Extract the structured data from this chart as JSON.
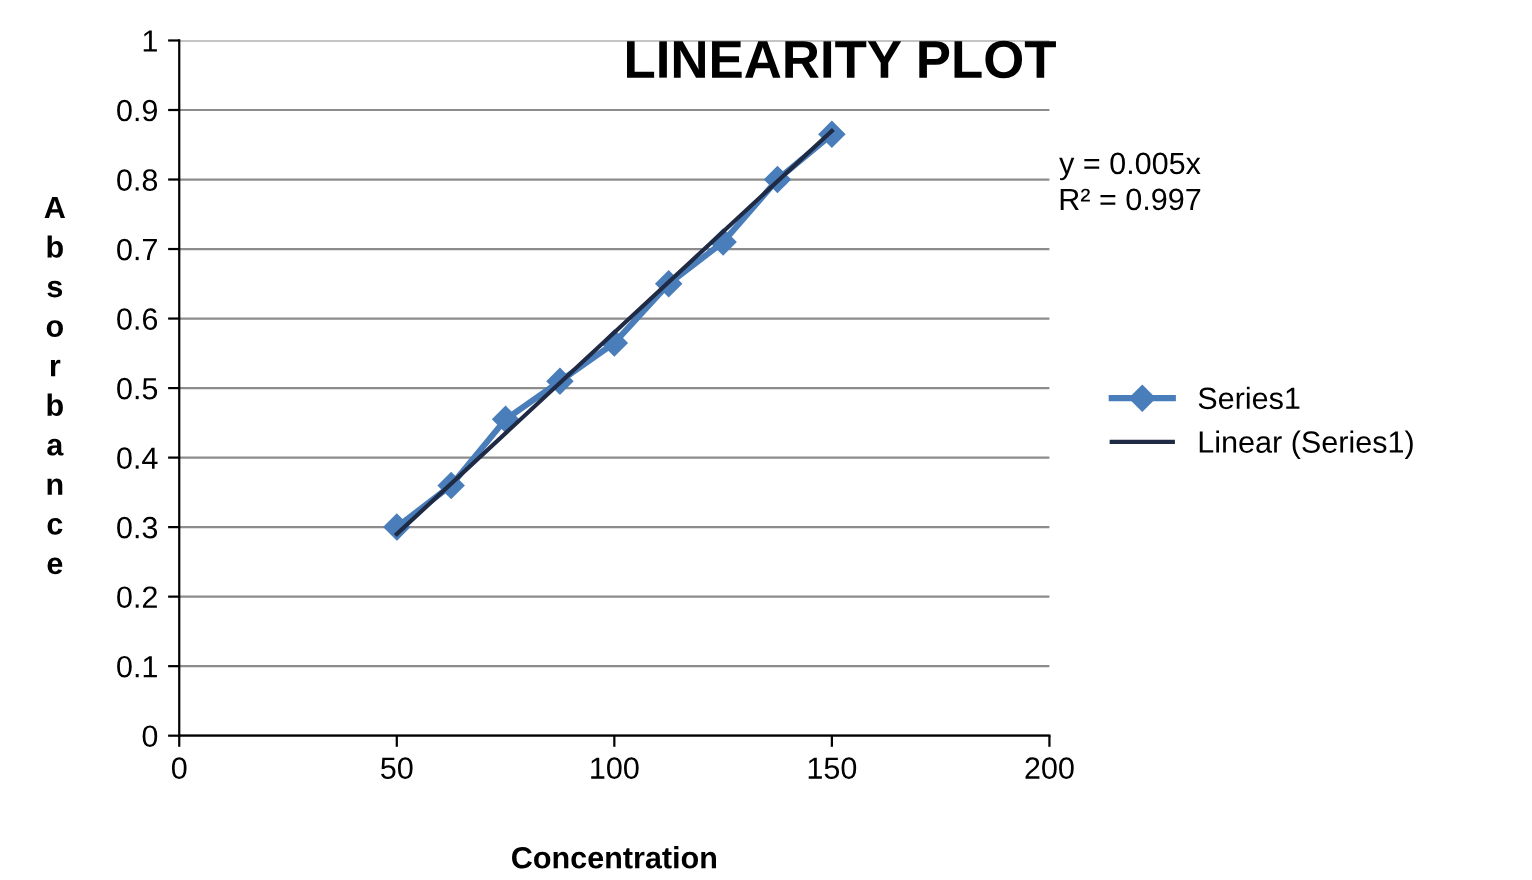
{
  "chart_data": {
    "type": "line",
    "title": "LINEARITY PLOT",
    "xlabel": "Concentration",
    "ylabel": "Absorbance",
    "xlim": [
      0,
      200
    ],
    "xticks": [
      0,
      50,
      100,
      150,
      200
    ],
    "ylim": [
      0,
      1
    ],
    "yticks": [
      0,
      0.1,
      0.2,
      0.3,
      0.4,
      0.5,
      0.6,
      0.7,
      0.8,
      0.9,
      1
    ],
    "grid": "y",
    "legend": "right",
    "marker": "diamond",
    "line_style": "solid",
    "series": [
      {
        "name": "Series1",
        "color": "#4a7ebb",
        "x": [
          50,
          62.5,
          75,
          87.5,
          100,
          112.5,
          125,
          137.5,
          150
        ],
        "values": [
          0.3,
          0.36,
          0.455,
          0.51,
          0.565,
          0.65,
          0.71,
          0.8,
          0.865
        ]
      },
      {
        "name": "Linear (Series1)",
        "color": "#1f2a44",
        "type": "line",
        "marker": "none",
        "x": [
          50,
          150
        ],
        "values": [
          0.29,
          0.87
        ]
      }
    ],
    "annotations": [
      "y = 0.005x",
      "R² = 0.997"
    ]
  }
}
